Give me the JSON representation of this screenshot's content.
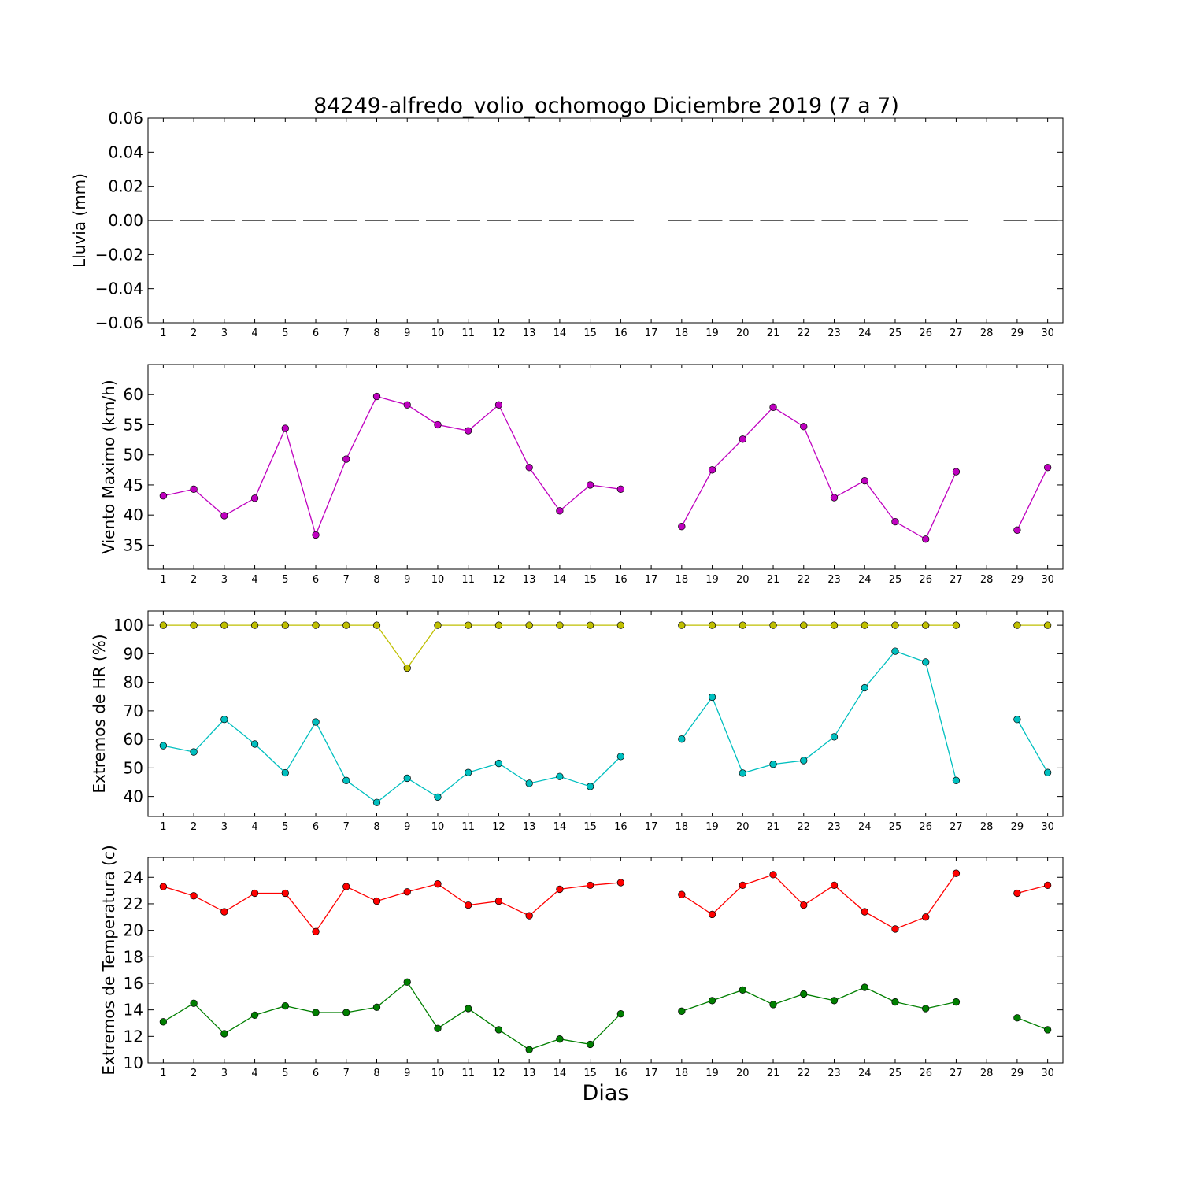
{
  "figure": {
    "title": "84249-alfredo_volio_ochomogo Diciembre 2019  (7 a 7)",
    "xlabel": "Dias"
  },
  "chart_data": [
    {
      "type": "line",
      "id": "lluvia",
      "ylabel": "Lluvia (mm)",
      "ylim": [
        -0.06,
        0.06
      ],
      "yticks": [
        -0.06,
        -0.04,
        -0.02,
        0.0,
        0.02,
        0.04,
        0.06
      ],
      "ytick_labels": [
        "−0.06",
        "−0.04",
        "−0.02",
        "0.00",
        "0.02",
        "0.04",
        "0.06"
      ],
      "xlim": [
        0.5,
        30.5
      ],
      "xticks": [
        1,
        2,
        3,
        4,
        5,
        6,
        7,
        8,
        9,
        10,
        11,
        12,
        13,
        14,
        15,
        16,
        17,
        18,
        19,
        20,
        21,
        22,
        23,
        24,
        25,
        26,
        27,
        28,
        29,
        30
      ],
      "series": [
        {
          "color": "#000000",
          "style": "dashed",
          "marker": "none",
          "x": [
            1,
            2,
            3,
            4,
            5,
            6,
            7,
            8,
            9,
            10,
            11,
            12,
            13,
            14,
            15,
            16,
            18,
            19,
            20,
            21,
            22,
            23,
            24,
            25,
            26,
            27,
            29,
            30
          ],
          "values": [
            0,
            0,
            0,
            0,
            0,
            0,
            0,
            0,
            0,
            0,
            0,
            0,
            0,
            0,
            0,
            0,
            0,
            0,
            0,
            0,
            0,
            0,
            0,
            0,
            0,
            0,
            0,
            0
          ],
          "segments": [
            [
              0.5,
              16.5
            ],
            [
              17.5,
              27.5
            ],
            [
              28.5,
              30.5
            ]
          ]
        }
      ]
    },
    {
      "type": "line",
      "id": "viento",
      "ylabel": "Viento Maximo (km/h)",
      "ylim": [
        31,
        65
      ],
      "yticks": [
        35,
        40,
        45,
        50,
        55,
        60
      ],
      "ytick_labels": [
        "35",
        "40",
        "45",
        "50",
        "55",
        "60"
      ],
      "xlim": [
        0.5,
        30.5
      ],
      "xticks": [
        1,
        2,
        3,
        4,
        5,
        6,
        7,
        8,
        9,
        10,
        11,
        12,
        13,
        14,
        15,
        16,
        17,
        18,
        19,
        20,
        21,
        22,
        23,
        24,
        25,
        26,
        27,
        28,
        29,
        30
      ],
      "series": [
        {
          "color": "#bf00bf",
          "marker": "circle",
          "x": [
            1,
            2,
            3,
            4,
            5,
            6,
            7,
            8,
            9,
            10,
            11,
            12,
            13,
            14,
            15,
            16,
            17,
            18,
            19,
            20,
            21,
            22,
            23,
            24,
            25,
            26,
            27,
            28,
            29,
            30
          ],
          "values": [
            43.2,
            44.3,
            39.9,
            42.8,
            54.4,
            36.7,
            49.3,
            59.7,
            58.3,
            55.0,
            54.0,
            58.3,
            47.9,
            40.7,
            45.0,
            44.3,
            null,
            38.1,
            47.5,
            52.6,
            57.9,
            54.7,
            42.9,
            45.7,
            38.9,
            36.0,
            47.2,
            null,
            37.5,
            47.9
          ]
        }
      ]
    },
    {
      "type": "line",
      "id": "hr",
      "ylabel": "Extremos de HR (%)",
      "ylim": [
        33,
        105
      ],
      "yticks": [
        40,
        50,
        60,
        70,
        80,
        90,
        100
      ],
      "ytick_labels": [
        "40",
        "50",
        "60",
        "70",
        "80",
        "90",
        "100"
      ],
      "xlim": [
        0.5,
        30.5
      ],
      "xticks": [
        1,
        2,
        3,
        4,
        5,
        6,
        7,
        8,
        9,
        10,
        11,
        12,
        13,
        14,
        15,
        16,
        17,
        18,
        19,
        20,
        21,
        22,
        23,
        24,
        25,
        26,
        27,
        28,
        29,
        30
      ],
      "series": [
        {
          "color": "#bfbf00",
          "marker": "circle",
          "x": [
            1,
            2,
            3,
            4,
            5,
            6,
            7,
            8,
            9,
            10,
            11,
            12,
            13,
            14,
            15,
            16,
            17,
            18,
            19,
            20,
            21,
            22,
            23,
            24,
            25,
            26,
            27,
            28,
            29,
            30
          ],
          "values": [
            100,
            100,
            100,
            100,
            100,
            100,
            100,
            100,
            85,
            100,
            100,
            100,
            100,
            100,
            100,
            100,
            null,
            100,
            100,
            100,
            100,
            100,
            100,
            100,
            100,
            100,
            100,
            null,
            100,
            100
          ]
        },
        {
          "color": "#00bfbf",
          "marker": "circle",
          "x": [
            1,
            2,
            3,
            4,
            5,
            6,
            7,
            8,
            9,
            10,
            11,
            12,
            13,
            14,
            15,
            16,
            17,
            18,
            19,
            20,
            21,
            22,
            23,
            24,
            25,
            26,
            27,
            28,
            29,
            30
          ],
          "values": [
            57.8,
            55.6,
            67.0,
            58.4,
            48.3,
            66.1,
            45.6,
            37.9,
            46.4,
            39.8,
            48.4,
            51.6,
            44.6,
            47.0,
            43.5,
            54.0,
            null,
            60.1,
            74.8,
            48.2,
            51.3,
            52.6,
            60.9,
            78.1,
            90.9,
            87.1,
            45.6,
            null,
            67.0,
            48.4
          ]
        }
      ]
    },
    {
      "type": "line",
      "id": "temperatura",
      "ylabel": "Extremos de Temperatura (c)",
      "ylim": [
        10,
        25.5
      ],
      "yticks": [
        10,
        12,
        14,
        16,
        18,
        20,
        22,
        24
      ],
      "ytick_labels": [
        "10",
        "12",
        "14",
        "16",
        "18",
        "20",
        "22",
        "24"
      ],
      "xlim": [
        0.5,
        30.5
      ],
      "xticks": [
        1,
        2,
        3,
        4,
        5,
        6,
        7,
        8,
        9,
        10,
        11,
        12,
        13,
        14,
        15,
        16,
        17,
        18,
        19,
        20,
        21,
        22,
        23,
        24,
        25,
        26,
        27,
        28,
        29,
        30
      ],
      "series": [
        {
          "color": "#ff0000",
          "marker": "circle",
          "x": [
            1,
            2,
            3,
            4,
            5,
            6,
            7,
            8,
            9,
            10,
            11,
            12,
            13,
            14,
            15,
            16,
            17,
            18,
            19,
            20,
            21,
            22,
            23,
            24,
            25,
            26,
            27,
            28,
            29,
            30
          ],
          "values": [
            23.3,
            22.6,
            21.4,
            22.8,
            22.8,
            19.9,
            23.3,
            22.2,
            22.9,
            23.5,
            21.9,
            22.2,
            21.1,
            23.1,
            23.4,
            23.6,
            null,
            22.7,
            21.2,
            23.4,
            24.2,
            21.9,
            23.4,
            21.4,
            20.1,
            21.0,
            24.3,
            null,
            22.8,
            23.4
          ]
        },
        {
          "color": "#007f00",
          "marker": "circle",
          "x": [
            1,
            2,
            3,
            4,
            5,
            6,
            7,
            8,
            9,
            10,
            11,
            12,
            13,
            14,
            15,
            16,
            17,
            18,
            19,
            20,
            21,
            22,
            23,
            24,
            25,
            26,
            27,
            28,
            29,
            30
          ],
          "values": [
            13.1,
            14.5,
            12.2,
            13.6,
            14.3,
            13.8,
            13.8,
            14.2,
            16.1,
            12.6,
            14.1,
            12.5,
            11.0,
            11.8,
            11.4,
            13.7,
            null,
            13.9,
            14.7,
            15.5,
            14.4,
            15.2,
            14.7,
            15.7,
            14.6,
            14.1,
            14.6,
            null,
            13.4,
            12.5
          ]
        }
      ]
    }
  ]
}
